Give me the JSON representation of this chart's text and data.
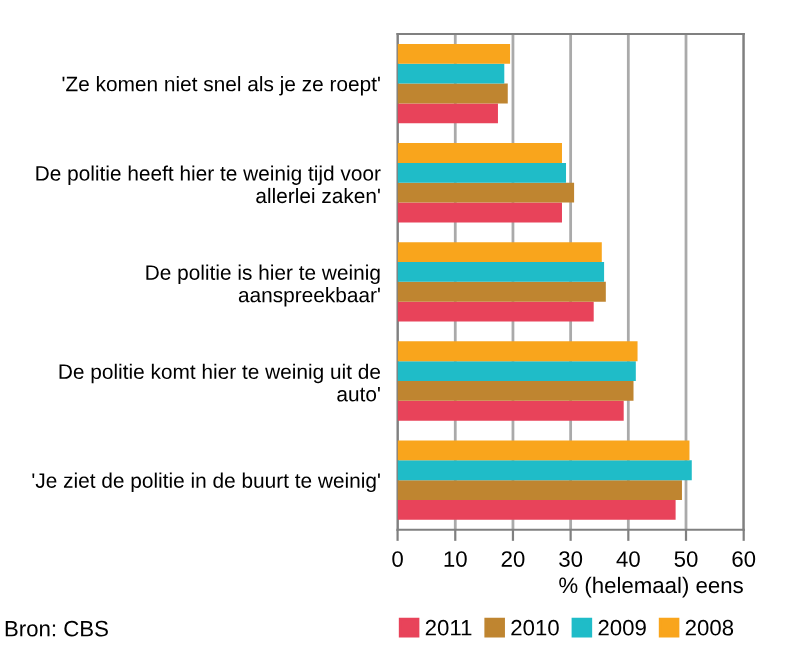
{
  "chart_data": {
    "type": "bar",
    "orientation": "horizontal",
    "xlabel": "% (helemaal) eens",
    "categories": [
      "'Ze komen niet snel als je ze roept'",
      "De politie heeft hier te weinig tijd voor\nallerlei zaken'",
      "De politie is hier te weinig\naanspreekbaar'",
      "De politie komt hier te weinig uit de\nauto'",
      "'Je ziet de politie in de buurt te weinig'"
    ],
    "series": [
      {
        "name": "2011",
        "color": "#e8435a",
        "values": [
          17.4,
          28.5,
          34.0,
          39.2,
          48.2
        ]
      },
      {
        "name": "2010",
        "color": "#bf8530",
        "values": [
          19.1,
          30.6,
          36.1,
          40.9,
          49.3
        ]
      },
      {
        "name": "2009",
        "color": "#1fbcc8",
        "values": [
          18.5,
          29.2,
          35.8,
          41.3,
          51.0
        ]
      },
      {
        "name": "2008",
        "color": "#f9a51c",
        "values": [
          19.5,
          28.5,
          35.4,
          41.6,
          50.6
        ]
      }
    ],
    "xlim": [
      0,
      60
    ],
    "xticks": [
      0,
      10,
      20,
      30,
      40,
      50,
      60
    ],
    "grid": "x",
    "legend": "bottom",
    "annotations": [
      "Bron: CBS"
    ]
  }
}
